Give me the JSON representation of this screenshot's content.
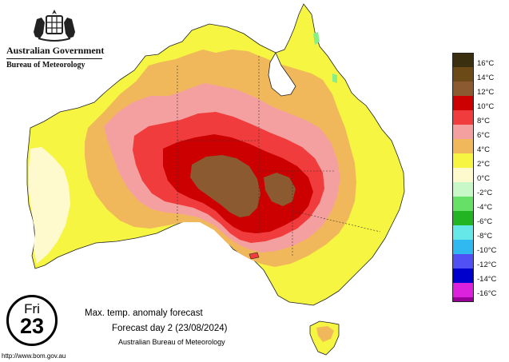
{
  "header": {
    "government": "Australian Government",
    "bureau": "Bureau of Meteorology"
  },
  "colors": {
    "ocean": "#ffffff",
    "anomaly_0_2": "#fffacd",
    "anomaly_2_4": "#f5f542",
    "anomaly_4_6": "#f0b85a",
    "anomaly_6_8": "#f5a0a0",
    "anomaly_8_10": "#f03c3c",
    "anomaly_10_12": "#cc0000",
    "anomaly_12_14": "#8b5a30",
    "anomaly_neg_0_2": "#88ee88"
  },
  "legend": {
    "items": [
      {
        "label": "16°C",
        "color": "#3a3010"
      },
      {
        "label": "14°C",
        "color": "#6b4a18"
      },
      {
        "label": "12°C",
        "color": "#8b5a30"
      },
      {
        "label": "10°C",
        "color": "#cc0000"
      },
      {
        "label": "8°C",
        "color": "#f03c3c"
      },
      {
        "label": "6°C",
        "color": "#f5a0a0"
      },
      {
        "label": "4°C",
        "color": "#f0b85a"
      },
      {
        "label": "2°C",
        "color": "#f5f542"
      },
      {
        "label": "0°C",
        "color": "#fffacd"
      },
      {
        "label": "-2°C",
        "color": "#c8f8c8"
      },
      {
        "label": "-4°C",
        "color": "#66e066"
      },
      {
        "label": "-6°C",
        "color": "#22b422"
      },
      {
        "label": "-8°C",
        "color": "#66e8e8"
      },
      {
        "label": "-10°C",
        "color": "#30b8f0"
      },
      {
        "label": "-12°C",
        "color": "#5050f5"
      },
      {
        "label": "-14°C",
        "color": "#0000cc"
      },
      {
        "label": "-16°C",
        "color": "#dd22dd"
      }
    ],
    "last_color": "#990099"
  },
  "forecast": {
    "day_name": "Fri",
    "day_number": "23",
    "title": "Max. temp. anomaly forecast",
    "subtitle": "Forecast day 2 (23/08/2024)",
    "organisation": "Australian Bureau of Meteorology"
  },
  "footer": {
    "url": "http://www.bom.gov.au"
  }
}
